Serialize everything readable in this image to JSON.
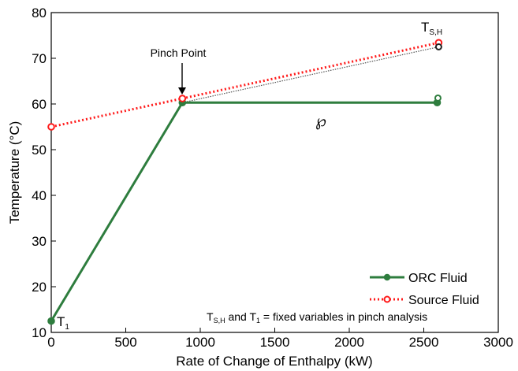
{
  "chart_data": {
    "type": "line",
    "xlabel": "Rate of Change of Enthalpy (kW)",
    "ylabel": "Temperature (°C)",
    "xlim": [
      0,
      3000
    ],
    "ylim": [
      10,
      80
    ],
    "x_ticks": [
      0,
      500,
      1000,
      1500,
      2000,
      2500,
      3000
    ],
    "y_ticks": [
      10,
      20,
      30,
      40,
      50,
      60,
      70,
      80
    ],
    "grid": false,
    "legend_position": "bottom-right",
    "series": [
      {
        "name": "ORC Fluid",
        "color": "#2e7d3e",
        "style": "solid",
        "marker": "filled-circle",
        "points": [
          [
            0,
            12.5
          ],
          [
            880,
            60.3
          ],
          [
            2590,
            60.3
          ]
        ]
      },
      {
        "name": "Source Fluid",
        "color": "#ff1a1a",
        "style": "dotted",
        "marker": "open-circle",
        "points": [
          [
            0,
            55
          ],
          [
            880,
            61.2
          ],
          [
            2600,
            73.4
          ]
        ]
      }
    ],
    "extra_markers": [
      {
        "color": "#2e7d3e",
        "style": "open-circle",
        "point": [
          2595,
          61.3
        ]
      },
      {
        "color": "#222222",
        "style": "open-circle",
        "point": [
          2600,
          72.5
        ]
      }
    ],
    "extra_lines": [
      {
        "color": "#555555",
        "style": "dotted",
        "points": [
          [
            880,
            60.3
          ],
          [
            2600,
            72.5
          ]
        ]
      }
    ],
    "annotations": {
      "pinch_point": {
        "text": "Pinch Point",
        "arrow_to": [
          880,
          61.2
        ]
      },
      "wp_symbol": {
        "text": "℘",
        "at": [
          1900,
          65
        ]
      },
      "tsh": {
        "main": "T",
        "sub": "S,H"
      },
      "t1": {
        "main": "T",
        "sub": "1"
      },
      "note": {
        "p1": "T",
        "s1": "S,H",
        "p2": " and T",
        "s2": "1",
        "p3": " = fixed variables in pinch analysis"
      }
    }
  }
}
